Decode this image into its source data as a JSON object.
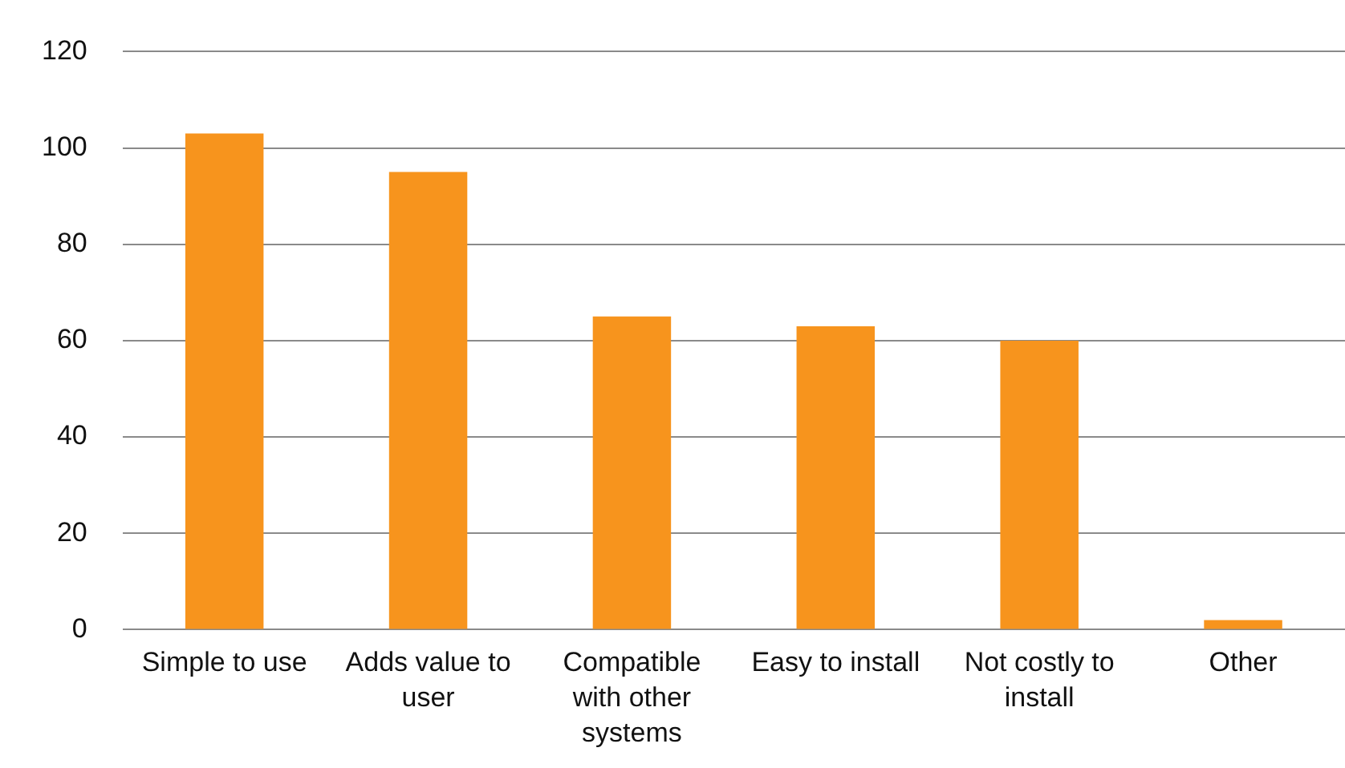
{
  "chart_data": {
    "type": "bar",
    "categories": [
      "Simple to use",
      "Adds value to user",
      "Compatible with other systems",
      "Easy to install",
      "Not costly to install",
      "Other"
    ],
    "values": [
      103,
      95,
      65,
      63,
      60,
      2
    ],
    "color": "#f7941d",
    "ylim": [
      0,
      120
    ],
    "yticks": [
      0,
      20,
      40,
      60,
      80,
      100,
      120
    ],
    "grid": "y"
  }
}
